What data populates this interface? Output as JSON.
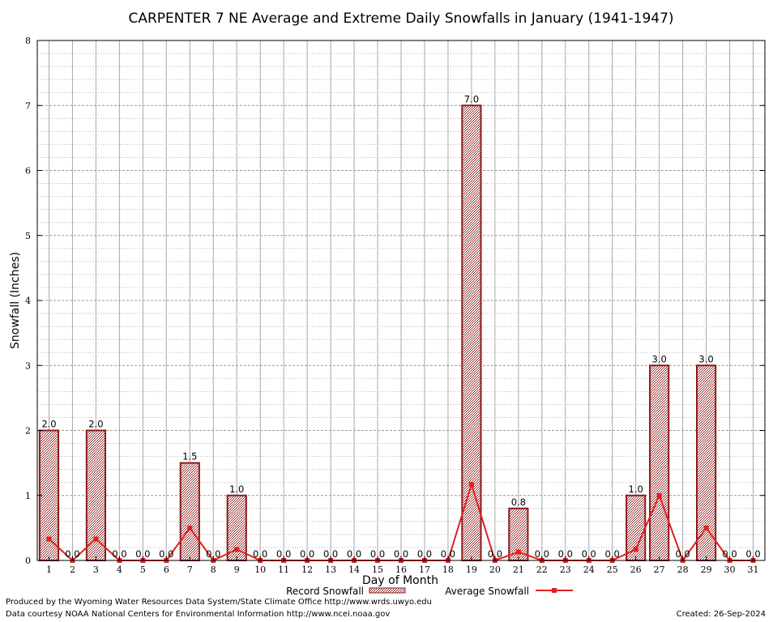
{
  "chart_data": {
    "type": "bar",
    "title": "CARPENTER 7 NE Average and Extreme Daily Snowfalls in January (1941-1947)",
    "xlabel": "Day of Month",
    "ylabel": "Snowfall (Inches)",
    "ylim": [
      0,
      8
    ],
    "yticks": [
      "0",
      "1",
      "2",
      "3",
      "4",
      "5",
      "6",
      "7",
      "8"
    ],
    "categories": [
      "1",
      "2",
      "3",
      "4",
      "5",
      "6",
      "7",
      "8",
      "9",
      "10",
      "11",
      "12",
      "13",
      "14",
      "15",
      "16",
      "17",
      "18",
      "19",
      "20",
      "21",
      "22",
      "23",
      "24",
      "25",
      "26",
      "27",
      "28",
      "29",
      "30",
      "31"
    ],
    "series": [
      {
        "name": "Record Snowfall",
        "kind": "bar",
        "color": "#8b1a1a",
        "values": [
          2.0,
          0.0,
          2.0,
          0.0,
          0.0,
          0.0,
          1.5,
          0.0,
          1.0,
          0.0,
          0.0,
          0.0,
          0.0,
          0.0,
          0.0,
          0.0,
          0.0,
          0.0,
          7.0,
          0.0,
          0.8,
          0.0,
          0.0,
          0.0,
          0.0,
          1.0,
          3.0,
          0.0,
          3.0,
          0.0,
          0.0
        ],
        "labels": [
          "2.0",
          "0.0",
          "2.0",
          "0.0",
          "0.0",
          "0.0",
          "1.5",
          "0.0",
          "1.0",
          "0.0",
          "0.0",
          "0.0",
          "0.0",
          "0.0",
          "0.0",
          "0.0",
          "0.0",
          "0.0",
          "7.0",
          "0.0",
          "0.8",
          "0.0",
          "0.0",
          "0.0",
          "0.0",
          "1.0",
          "3.0",
          "0.0",
          "3.0",
          "0.0",
          "0.0"
        ]
      },
      {
        "name": "Average Snowfall",
        "kind": "line",
        "color": "#e02020",
        "values": [
          0.33,
          0.0,
          0.33,
          0.0,
          0.0,
          0.0,
          0.5,
          0.0,
          0.17,
          0.0,
          0.0,
          0.0,
          0.0,
          0.0,
          0.0,
          0.0,
          0.0,
          0.0,
          1.17,
          0.0,
          0.13,
          0.0,
          0.0,
          0.0,
          0.0,
          0.17,
          1.0,
          0.0,
          0.5,
          0.0,
          0.0
        ]
      }
    ],
    "legend_position": "bottom",
    "grid": true
  },
  "footer": {
    "produced_by": "Produced by the Wyoming Water Resources Data System/State Climate Office http://www.wrds.uwyo.edu",
    "data_courtesy": "Data courtesy NOAA National Centers for Environmental Information http://www.ncei.noaa.gov",
    "created": "Created:  26-Sep-2024"
  }
}
